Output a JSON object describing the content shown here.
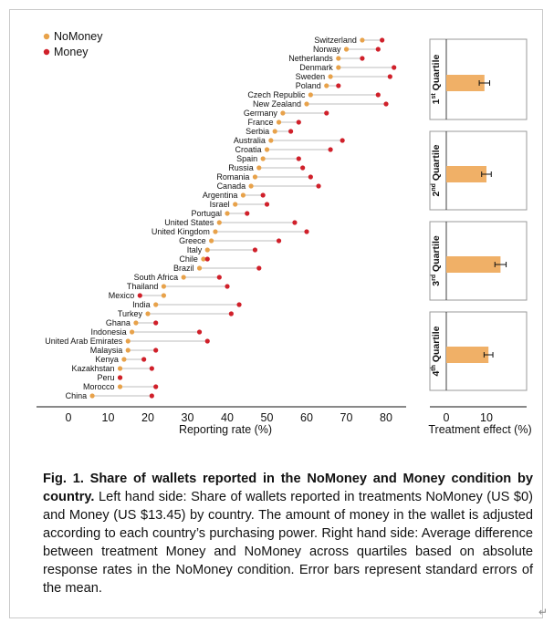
{
  "legend": {
    "nomoney": "NoMoney",
    "money": "Money"
  },
  "colors": {
    "nomoney": "#E8A24A",
    "money": "#D0202A",
    "bar": "#F0B067",
    "connector": "#bdbdbd"
  },
  "chart_data": [
    {
      "type": "scatter",
      "xlabel": "Reporting rate (%)",
      "xticks": [
        0,
        10,
        20,
        30,
        40,
        50,
        60,
        70,
        80
      ],
      "xlim": [
        -7,
        87
      ],
      "legend_placement": "top-left",
      "series": [
        {
          "name": "NoMoney",
          "values": [
            74,
            70,
            68,
            68,
            66,
            65,
            61,
            60,
            54,
            53,
            52,
            51,
            50,
            49,
            48,
            47,
            46,
            44,
            42,
            40,
            38,
            37,
            36,
            35,
            34,
            33,
            29,
            24,
            24,
            22,
            20,
            17,
            16,
            15,
            15,
            14,
            13,
            13,
            13,
            6
          ]
        },
        {
          "name": "Money",
          "values": [
            79,
            78,
            74,
            82,
            81,
            68,
            78,
            80,
            65,
            58,
            56,
            69,
            66,
            58,
            59,
            61,
            63,
            49,
            50,
            45,
            57,
            60,
            53,
            47,
            35,
            48,
            38,
            40,
            18,
            43,
            41,
            22,
            33,
            35,
            22,
            19,
            21,
            13,
            22,
            21
          ]
        }
      ],
      "categories": [
        "Switzerland",
        "Norway",
        "Netherlands",
        "Denmark",
        "Sweden",
        "Poland",
        "Czech Republic",
        "New Zealand",
        "Germany",
        "France",
        "Serbia",
        "Australia",
        "Croatia",
        "Spain",
        "Russia",
        "Romania",
        "Canada",
        "Argentina",
        "Israel",
        "Portugal",
        "United States",
        "United Kingdom",
        "Greece",
        "Italy",
        "Chile",
        "Brazil",
        "South Africa",
        "Thailand",
        "Mexico",
        "India",
        "Turkey",
        "Ghana",
        "Indonesia",
        "United Arab Emirates",
        "Malaysia",
        "Kenya",
        "Kazakhstan",
        "Peru",
        "Morocco",
        "China"
      ]
    },
    {
      "type": "bar",
      "orientation": "horizontal",
      "xlabel": "Treatment effect (%)",
      "xticks": [
        0,
        10
      ],
      "xlim": [
        -3,
        20
      ],
      "categories": [
        "1st Quartile",
        "2nd Quartile",
        "3rd Quartile",
        "4th Quartile"
      ],
      "category_labels": [
        {
          "num": "1",
          "sup": "st",
          "word": " Quartile"
        },
        {
          "num": "2",
          "sup": "nd",
          "word": " Quartile"
        },
        {
          "num": "3",
          "sup": "rd",
          "word": " Quartile"
        },
        {
          "num": "4",
          "sup": "th",
          "word": " Quartile"
        }
      ],
      "values": [
        9.5,
        10,
        13.5,
        10.5
      ],
      "errors": [
        1.3,
        1.2,
        1.4,
        1.1
      ]
    }
  ],
  "caption": {
    "bold": "Fig. 1. Share of wallets reported in the NoMoney and Money condition by country.",
    "text": " Left hand side: Share of wallets reported in treatments NoMoney (US $0) and Money (US $13.45) by country. The amount of money in the wallet is adjusted according to each country’s purchasing power. Right hand side: Average difference between treatment Money and NoMoney across quartiles based on absolute response rates in the NoMoney condition. Error bars represent standard errors of the mean."
  },
  "return_mark": "↵"
}
